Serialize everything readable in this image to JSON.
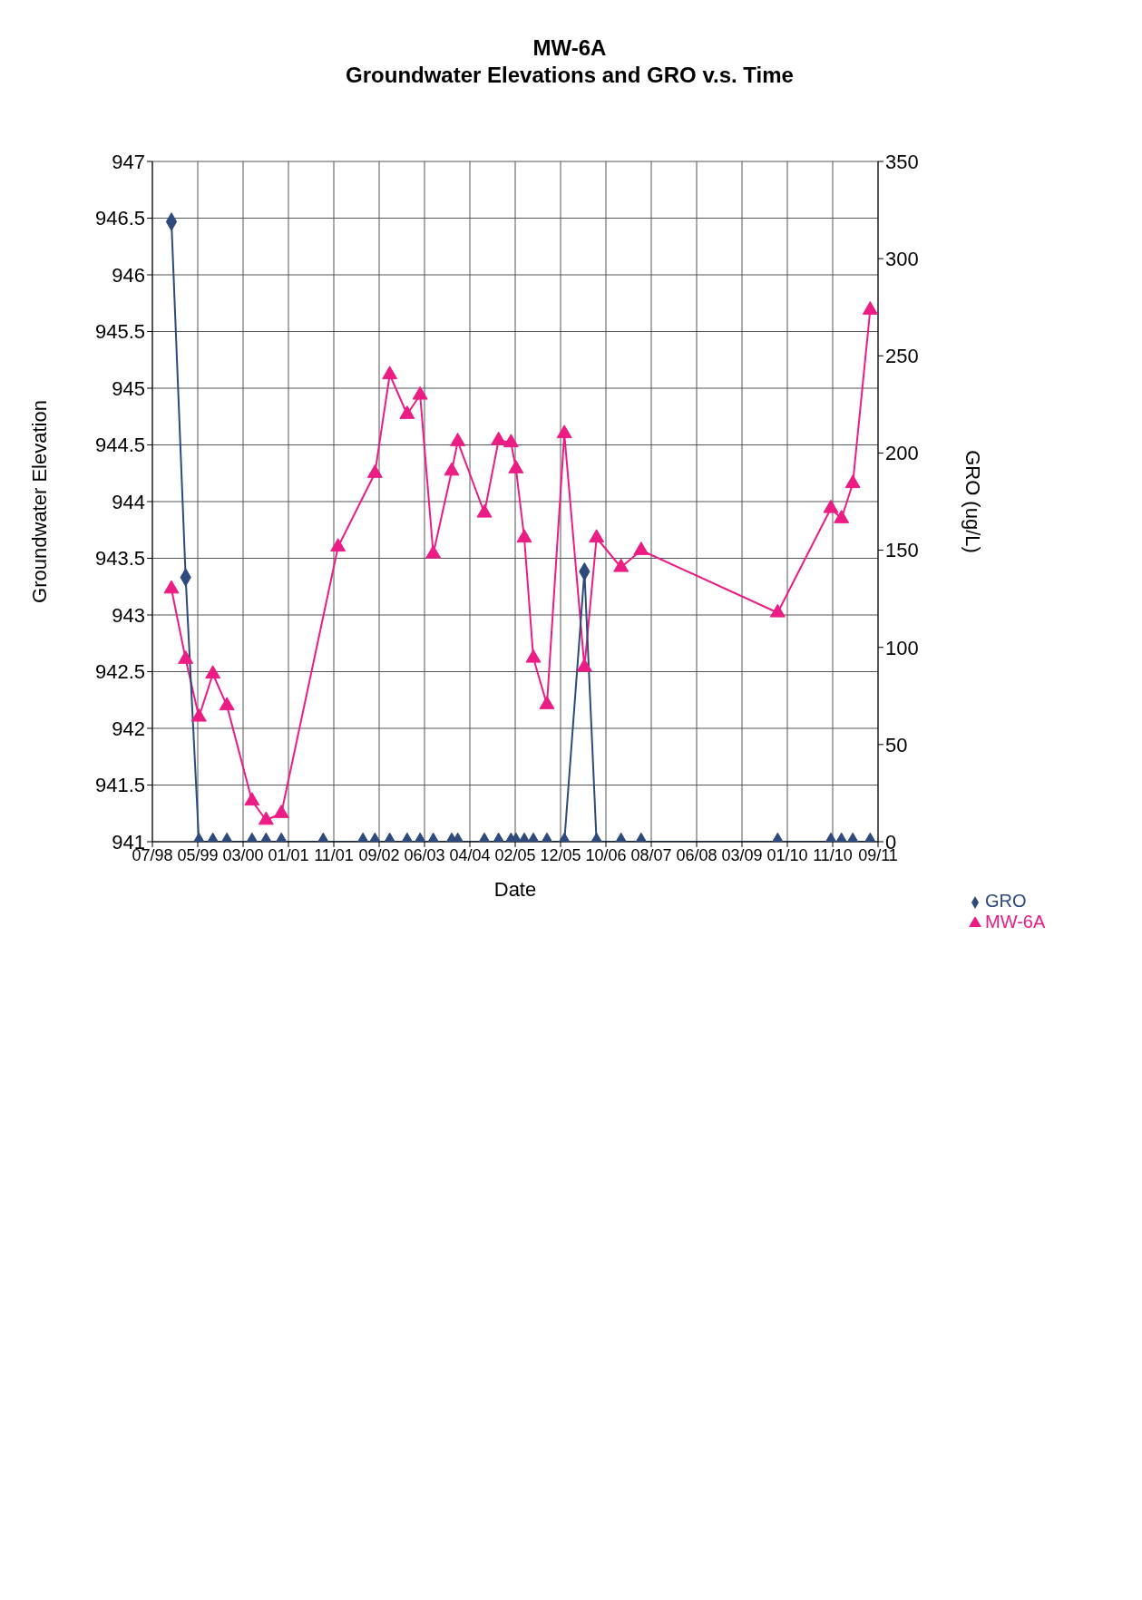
{
  "chart_data": {
    "type": "line",
    "title": "MW-6A",
    "subtitle": "Groundwater Elevations and GRO v.s. Time",
    "xlabel": "Date",
    "ylabel": "Groundwater Elevation",
    "y2label": "GRO (ug/L)",
    "xlim": [
      "1998-07-26",
      "2011-09-16"
    ],
    "xticks": [
      {
        "value": "1998-07-26",
        "label": "07/98"
      },
      {
        "value": "1999-05-22",
        "label": "05/99"
      },
      {
        "value": "2000-03-17",
        "label": "03/00"
      },
      {
        "value": "2001-01-11",
        "label": "01/01"
      },
      {
        "value": "2001-11-07",
        "label": "11/01"
      },
      {
        "value": "2002-09-03",
        "label": "09/02"
      },
      {
        "value": "2003-06-30",
        "label": "06/03"
      },
      {
        "value": "2004-04-25",
        "label": "04/04"
      },
      {
        "value": "2005-02-19",
        "label": "02/05"
      },
      {
        "value": "2005-12-16",
        "label": "12/05"
      },
      {
        "value": "2006-10-12",
        "label": "10/06"
      },
      {
        "value": "2007-08-08",
        "label": "08/07"
      },
      {
        "value": "2008-06-03",
        "label": "06/08"
      },
      {
        "value": "2009-03-30",
        "label": "03/09"
      },
      {
        "value": "2010-01-24",
        "label": "01/10"
      },
      {
        "value": "2010-11-20",
        "label": "11/10"
      },
      {
        "value": "2011-09-16",
        "label": "09/11"
      }
    ],
    "ylim": [
      941,
      947
    ],
    "yticks": [
      941,
      941.5,
      942,
      942.5,
      943,
      943.5,
      944,
      944.5,
      945,
      945.5,
      946,
      946.5,
      947
    ],
    "y2lim": [
      0,
      350
    ],
    "y2ticks": [
      0,
      50,
      100,
      150,
      200,
      250,
      300,
      350
    ],
    "grid": true,
    "legend": "bottom right",
    "series": [
      {
        "name": "MW-6A",
        "color": "#ec1c85",
        "marker": "triangle",
        "x": [
          "1998-11-29",
          "1999-03-03",
          "1999-05-30",
          "1999-08-30",
          "1999-12-01",
          "2000-05-15",
          "2000-08-16",
          "2000-11-25",
          "2001-12-05",
          "2002-08-06",
          "2002-11-12",
          "2003-03-07",
          "2003-06-01",
          "2003-08-27",
          "2003-12-27",
          "2004-02-05",
          "2004-07-30",
          "2004-11-01",
          "2005-01-22",
          "2005-02-24",
          "2005-04-20",
          "2005-06-19",
          "2005-09-17",
          "2006-01-10",
          "2006-05-23",
          "2006-08-11",
          "2007-01-20",
          "2007-06-02",
          "2009-11-21",
          "2010-11-08",
          "2011-01-17",
          "2011-04-02",
          "2011-07-26"
        ],
        "values": [
          943.23,
          942.61,
          942.1,
          942.48,
          942.2,
          941.36,
          941.19,
          941.25,
          943.6,
          944.25,
          945.12,
          944.77,
          944.94,
          943.54,
          944.27,
          944.53,
          943.9,
          944.54,
          944.52,
          944.29,
          943.68,
          942.62,
          942.21,
          944.6,
          942.54,
          943.68,
          943.42,
          943.57,
          943.02,
          943.94,
          943.85,
          944.16,
          945.69
        ]
      },
      {
        "name": "GRO",
        "axis": "y2",
        "color": "#2e4a7c",
        "marker": "diamond",
        "x": [
          "1998-11-29",
          "1999-03-03",
          "1999-05-30",
          "1999-08-30",
          "1999-12-01",
          "2000-05-15",
          "2000-08-16",
          "2000-11-25",
          "2001-08-29",
          "2002-05-19",
          "2002-08-06",
          "2002-11-12",
          "2003-03-07",
          "2003-06-01",
          "2003-08-27",
          "2003-12-27",
          "2004-02-05",
          "2004-07-30",
          "2004-11-01",
          "2005-01-22",
          "2005-02-24",
          "2005-04-20",
          "2005-06-19",
          "2005-09-17",
          "2006-01-10",
          "2006-05-23",
          "2006-08-11",
          "2007-01-20",
          "2007-06-02",
          "2009-11-21",
          "2010-11-08",
          "2011-01-17",
          "2011-04-02",
          "2011-07-26"
        ],
        "values": [
          319,
          136,
          0,
          0,
          0,
          0,
          0,
          0,
          0,
          0,
          0,
          0,
          0,
          0,
          0,
          0,
          0,
          0,
          0,
          0,
          0,
          0,
          0,
          0,
          0,
          139,
          0,
          0,
          0,
          0,
          0,
          0,
          0,
          0
        ]
      }
    ]
  }
}
